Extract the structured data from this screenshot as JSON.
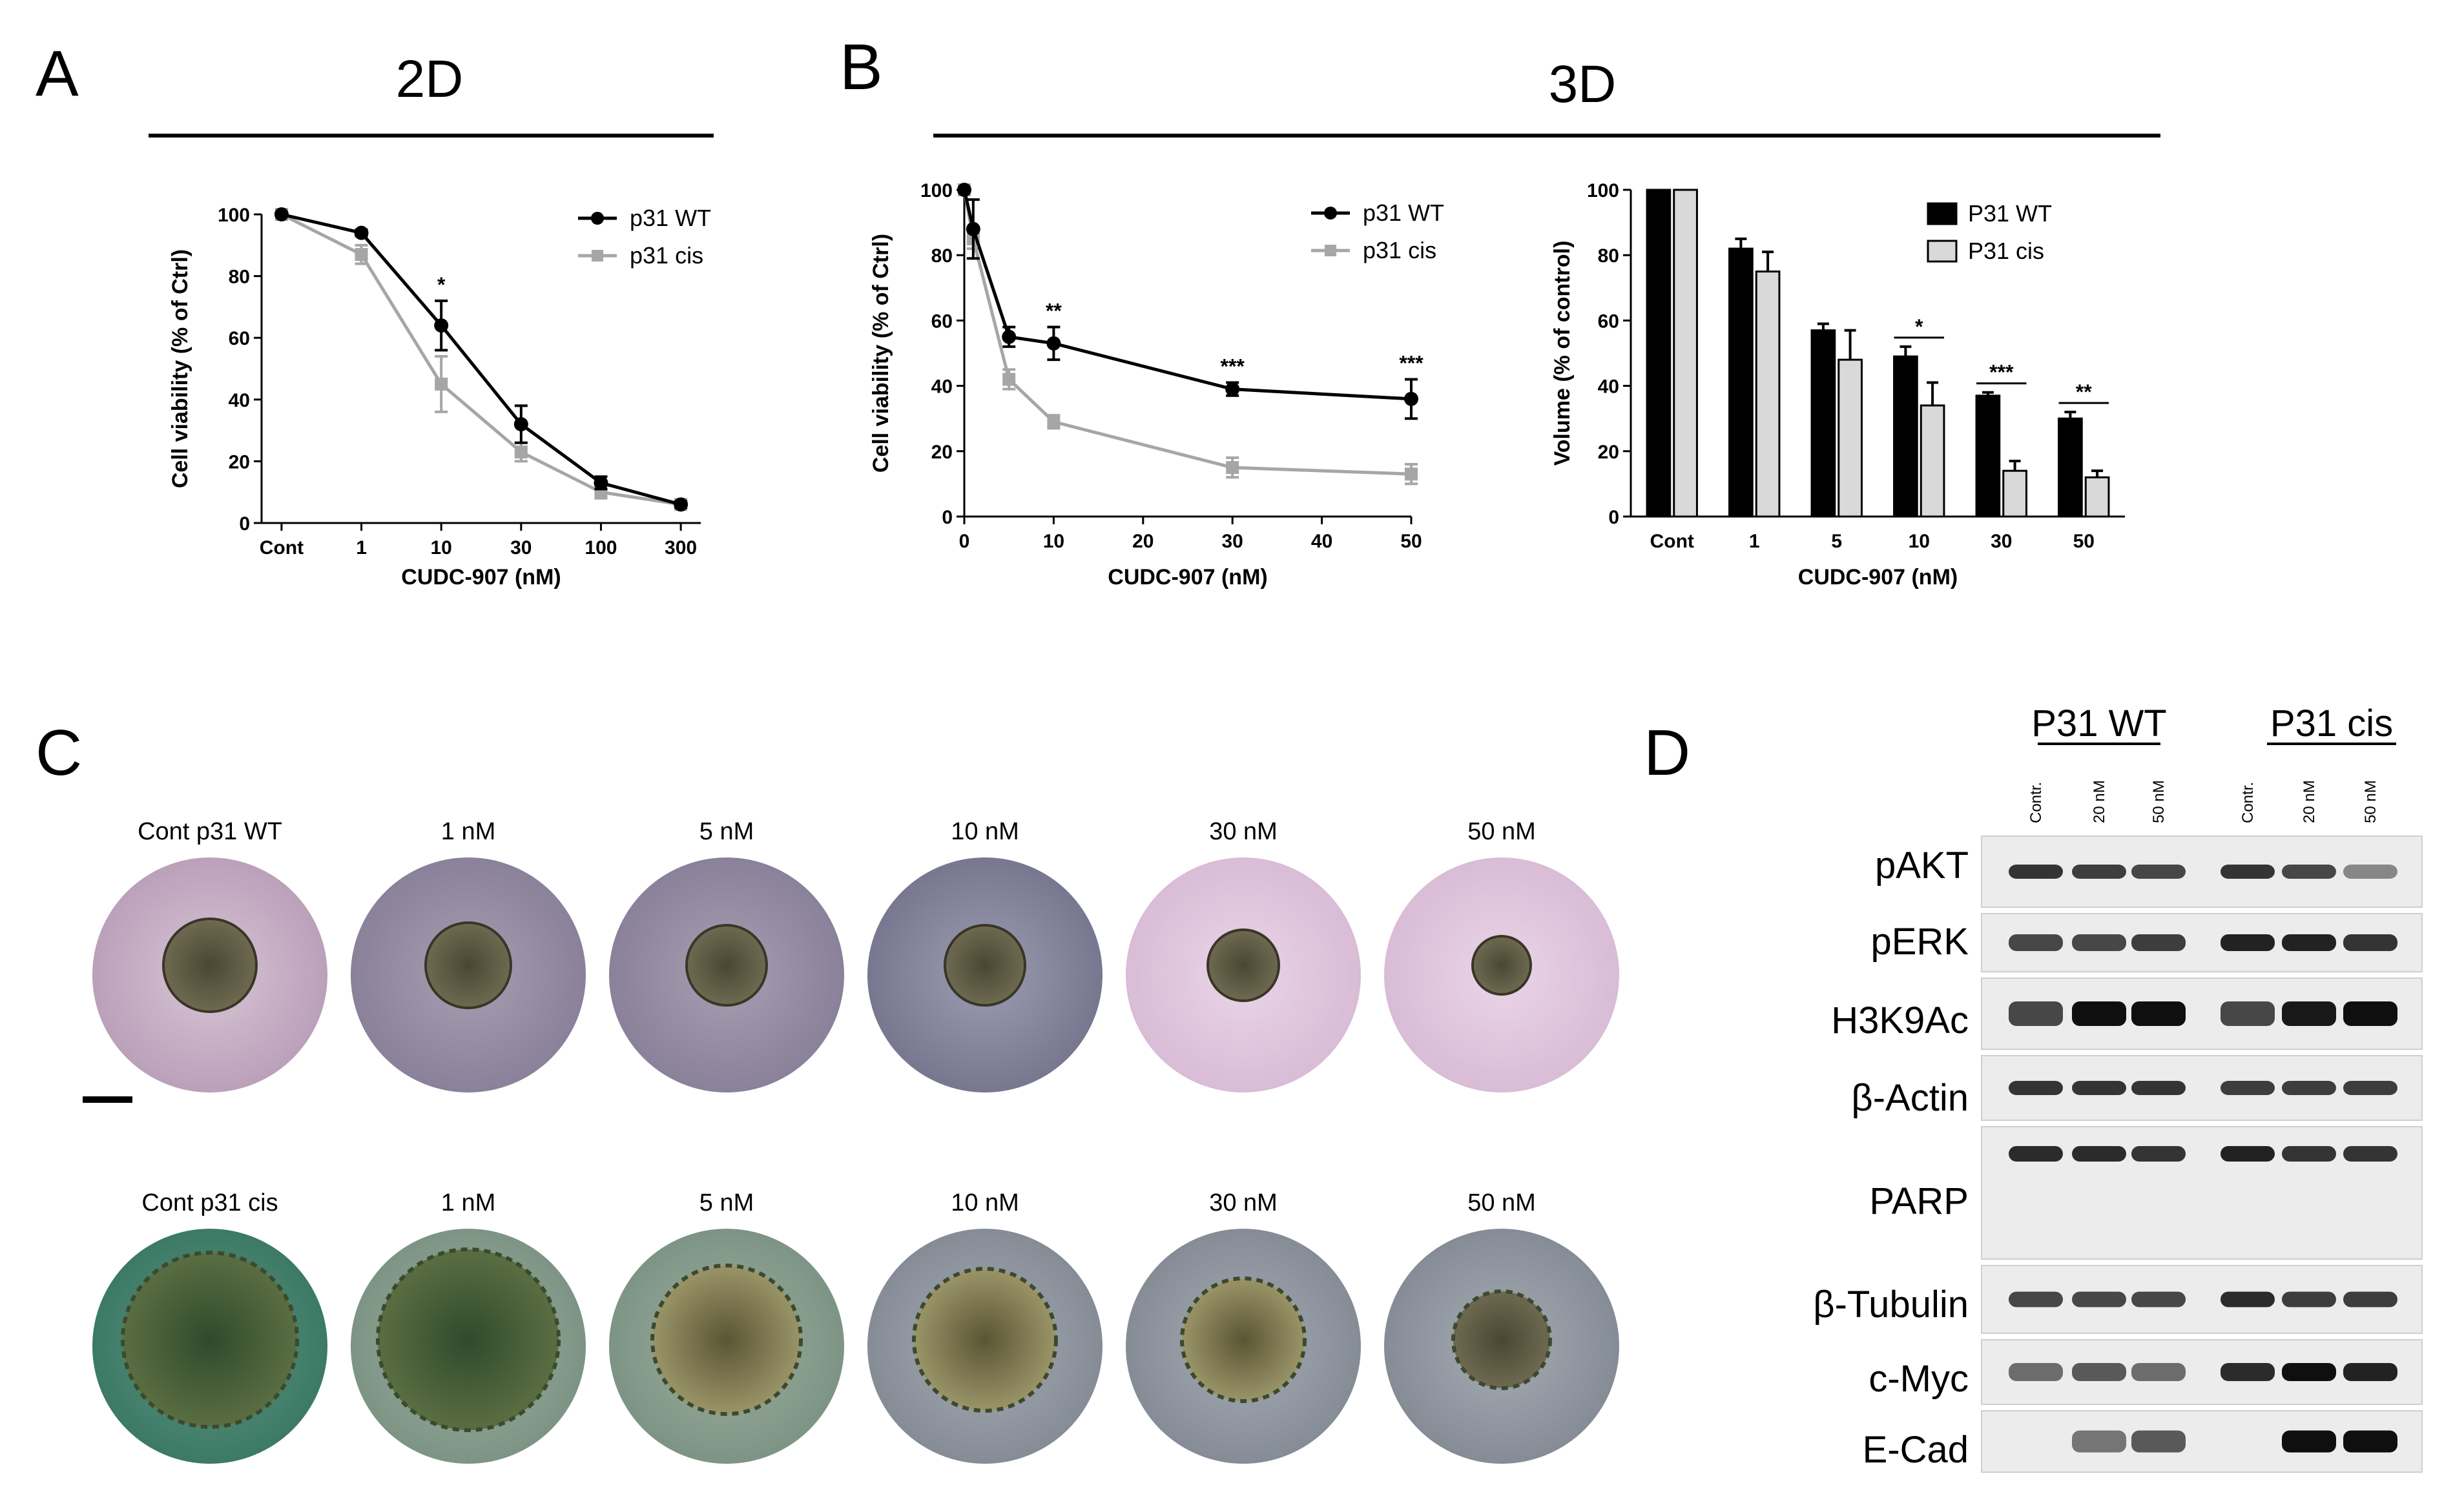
{
  "panels": {
    "A": "A",
    "B": "B",
    "C": "C",
    "D": "D"
  },
  "headers": {
    "h2d": "2D",
    "h3d": "3D"
  },
  "colors": {
    "wt": "#000000",
    "cis": "#a6a6a6",
    "cis_bar": "#d9d9d9"
  },
  "chart_data": [
    {
      "type": "line",
      "panel": "A",
      "xlabel": "CUDC-907 (nM)",
      "ylabel": "Cell viability (% of Ctrl)",
      "ylim": [
        0,
        100
      ],
      "yticks": [
        "0",
        "20",
        "40",
        "60",
        "80",
        "100"
      ],
      "categories": [
        "Cont",
        "1",
        "10",
        "30",
        "100",
        "300"
      ],
      "legend": [
        "p31 WT",
        "p31 cis"
      ],
      "series": [
        {
          "name": "p31 WT",
          "values": [
            100,
            94,
            64,
            32,
            13,
            6
          ],
          "errors": [
            0,
            1,
            8,
            6,
            2,
            1
          ]
        },
        {
          "name": "p31 cis",
          "values": [
            100,
            87,
            45,
            23,
            10,
            6
          ],
          "errors": [
            0,
            3,
            9,
            3,
            2,
            1
          ]
        }
      ],
      "annotations": [
        {
          "category": "10",
          "text": "*"
        }
      ]
    },
    {
      "type": "line",
      "panel": "B",
      "xlabel": "CUDC-907 (nM)",
      "ylabel": "Cell viability (% of Ctrl)",
      "xlim": [
        0,
        50
      ],
      "ylim": [
        0,
        100
      ],
      "xticks": [
        "0",
        "10",
        "20",
        "30",
        "40",
        "50"
      ],
      "yticks": [
        "0",
        "20",
        "40",
        "60",
        "80",
        "100"
      ],
      "legend": [
        "p31 WT",
        "p31 cis"
      ],
      "series": [
        {
          "name": "p31 WT",
          "x": [
            0,
            1,
            5,
            10,
            30,
            50
          ],
          "values": [
            100,
            88,
            55,
            53,
            39,
            36
          ],
          "errors": [
            0,
            9,
            3,
            5,
            2,
            6
          ]
        },
        {
          "name": "p31 cis",
          "x": [
            0,
            1,
            5,
            10,
            30,
            50
          ],
          "values": [
            100,
            85,
            42,
            29,
            15,
            13
          ],
          "errors": [
            0,
            3,
            3,
            2,
            3,
            3
          ]
        }
      ],
      "annotations": [
        {
          "x": 10,
          "text": "**"
        },
        {
          "x": 30,
          "text": "***"
        },
        {
          "x": 50,
          "text": "***"
        }
      ]
    },
    {
      "type": "bar",
      "panel": "B-right",
      "xlabel": "CUDC-907 (nM)",
      "ylabel": "Volume (% of control)",
      "ylim": [
        0,
        100
      ],
      "yticks": [
        "0",
        "20",
        "40",
        "60",
        "80",
        "100"
      ],
      "categories": [
        "Cont",
        "1",
        "5",
        "10",
        "30",
        "50"
      ],
      "legend": [
        "P31 WT",
        "P31 cis"
      ],
      "series": [
        {
          "name": "P31 WT",
          "values": [
            100,
            82,
            57,
            49,
            37,
            30
          ],
          "errors": [
            0,
            3,
            2,
            3,
            1,
            2
          ]
        },
        {
          "name": "P31 cis",
          "values": [
            100,
            75,
            48,
            34,
            14,
            12
          ],
          "errors": [
            0,
            6,
            9,
            7,
            3,
            2
          ]
        }
      ],
      "annotations": [
        {
          "category": "10",
          "text": "*"
        },
        {
          "category": "30",
          "text": "***"
        },
        {
          "category": "50",
          "text": "**"
        }
      ]
    }
  ],
  "images": {
    "row1": [
      "Cont p31 WT",
      "1 nM",
      "5 nM",
      "10 nM",
      "30 nM",
      "50 nM"
    ],
    "row2": [
      "Cont p31 cis",
      "1 nM",
      "5 nM",
      "10 nM",
      "30 nM",
      "50 nM"
    ]
  },
  "western": {
    "groups": [
      "P31 WT",
      "P31 cis"
    ],
    "lanes": [
      "Contr.",
      "20 nM",
      "50 nM",
      "Contr.",
      "20 nM",
      "50 nM"
    ],
    "proteins": [
      "pAKT",
      "pERK",
      "H3K9Ac",
      "β-Actin",
      "PARP",
      "β-Tubulin",
      "c-Myc",
      "E-Cad"
    ]
  }
}
